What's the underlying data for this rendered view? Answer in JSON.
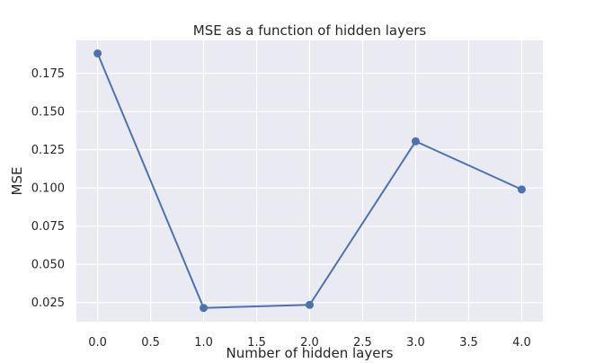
{
  "chart_data": {
    "type": "line",
    "title": "MSE as a function of hidden layers",
    "xlabel": "Number of hidden layers",
    "ylabel": "MSE",
    "x": [
      0,
      1,
      2,
      3,
      4
    ],
    "series": [
      {
        "values": [
          0.188,
          0.0215,
          0.0235,
          0.1305,
          0.099
        ],
        "color": "#4c72b0"
      }
    ],
    "xlim": [
      -0.2,
      4.2
    ],
    "ylim": [
      0.0125,
      0.1965
    ],
    "xticks": [
      0.0,
      0.5,
      1.0,
      1.5,
      2.0,
      2.5,
      3.0,
      3.5,
      4.0
    ],
    "xtick_labels": [
      "0.0",
      "0.5",
      "1.0",
      "1.5",
      "2.0",
      "2.5",
      "3.0",
      "3.5",
      "4.0"
    ],
    "yticks": [
      0.025,
      0.05,
      0.075,
      0.1,
      0.125,
      0.15,
      0.175
    ],
    "ytick_labels": [
      "0.025",
      "0.050",
      "0.075",
      "0.100",
      "0.125",
      "0.150",
      "0.175"
    ],
    "grid": true,
    "plot_background": "#eaeaf2",
    "grid_color": "#ffffff"
  }
}
